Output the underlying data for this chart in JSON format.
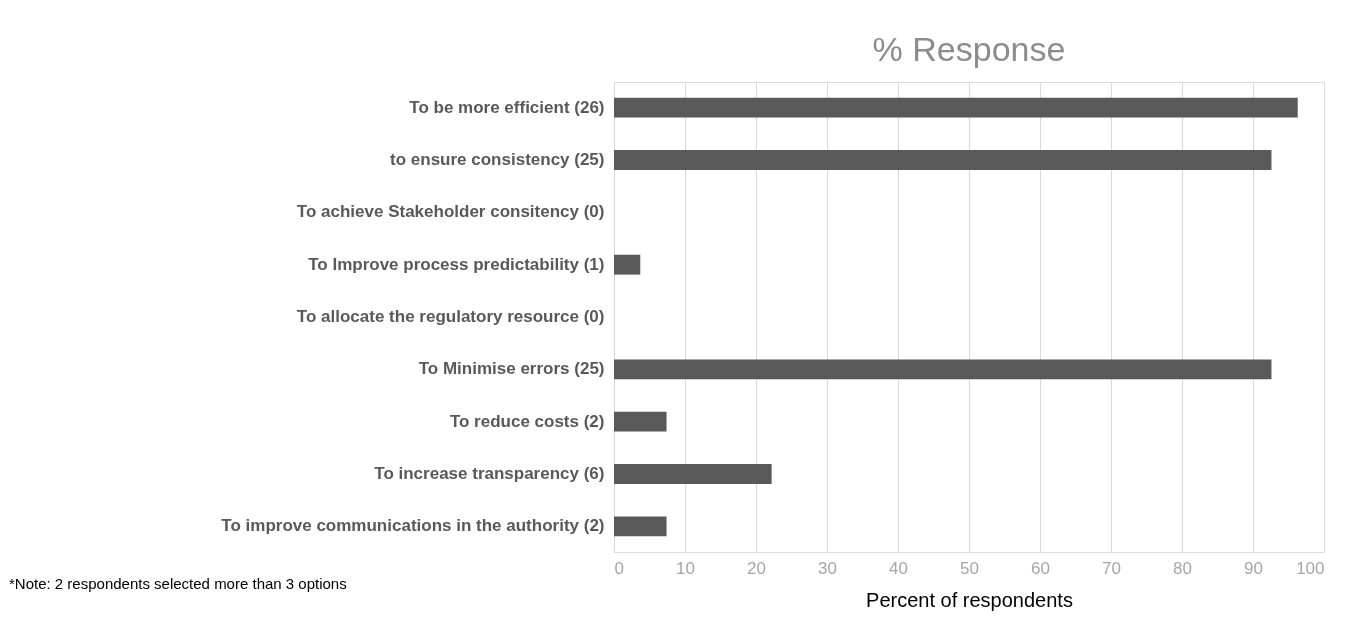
{
  "chart_data": {
    "type": "bar",
    "orientation": "horizontal",
    "title": "% Response",
    "xlabel": "Percent of respondents",
    "categories": [
      "To be more efficient (26)",
      "to ensure consistency (25)",
      "To achieve Stakeholder consitency (0)",
      "To Improve process predictability (1)",
      "To allocate the regulatory resource (0)",
      "To Minimise errors (25)",
      "To reduce costs (2)",
      "To increase transparency (6)",
      "To improve communications in the authority (2)"
    ],
    "values": [
      96.3,
      92.6,
      0,
      3.7,
      0,
      92.6,
      7.4,
      22.2,
      7.4
    ],
    "color": "#595959",
    "xlim": [
      0,
      100
    ],
    "xticks": [
      0,
      10,
      20,
      30,
      40,
      50,
      60,
      70,
      80,
      90,
      100
    ],
    "grid": "x",
    "annotations": [
      "*Note: 2 respondents selected more than 3 options"
    ]
  }
}
